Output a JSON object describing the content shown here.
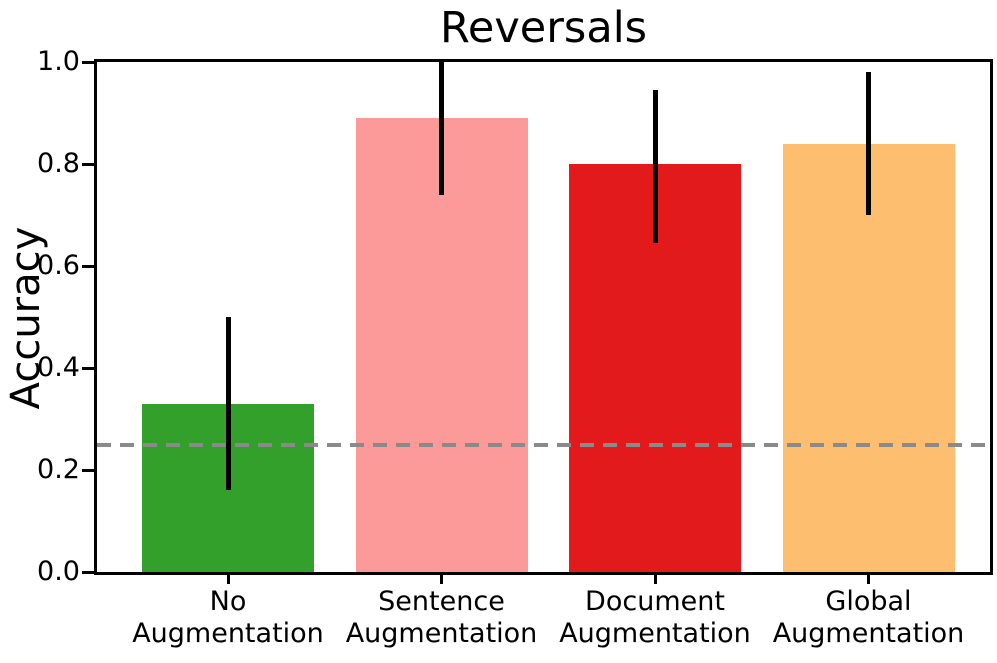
{
  "chart_data": {
    "type": "bar",
    "title": "Reversals",
    "xlabel": "",
    "ylabel": "Accuracy",
    "ylim": [
      0.0,
      1.0
    ],
    "yticks": [
      0.0,
      0.2,
      0.4,
      0.6,
      0.8,
      1.0
    ],
    "ytick_labels": [
      "0.0",
      "0.2",
      "0.4",
      "0.6",
      "0.8",
      "1.0"
    ],
    "grid": false,
    "legend": "none",
    "categories": [
      "No\nAugmentation",
      "Sentence\nAugmentation",
      "Document\nAugmentation",
      "Global\nAugmentation"
    ],
    "values": [
      0.33,
      0.89,
      0.8,
      0.84
    ],
    "error_low": [
      0.16,
      0.74,
      0.645,
      0.7
    ],
    "error_high": [
      0.5,
      1.0,
      0.945,
      0.98
    ],
    "bar_colors": [
      "#33a02c",
      "#fb9a99",
      "#e31a1c",
      "#fdbf6f"
    ],
    "error_bar_color": "#000000",
    "reference_line": {
      "value": 0.25,
      "color": "#8a8a8a",
      "style": "dashed"
    }
  }
}
